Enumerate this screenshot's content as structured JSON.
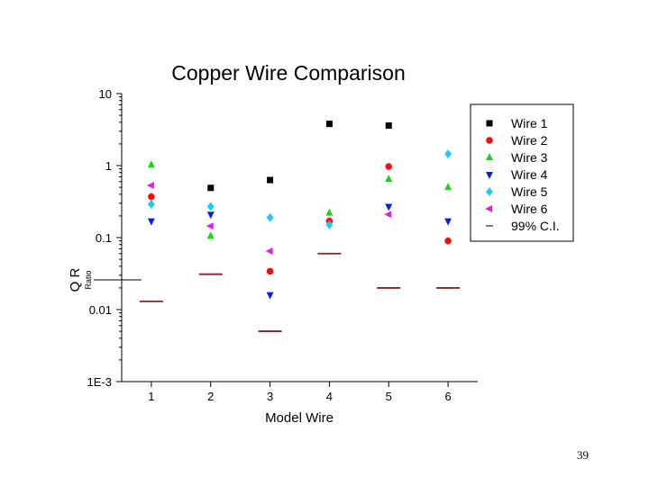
{
  "slide": {
    "page_number": "39"
  },
  "chart_data": {
    "type": "scatter",
    "title": "Copper Wire Comparison",
    "xlabel": "Model Wire",
    "ylabel": "Q R",
    "ylabel_extra": "Ratio",
    "y_scale": "log",
    "ylim": [
      0.001,
      10
    ],
    "xlim": [
      0.5,
      6.5
    ],
    "x_ticks": [
      "1",
      "2",
      "3",
      "4",
      "5",
      "6"
    ],
    "y_ticks": [
      {
        "value": 10,
        "label": "10"
      },
      {
        "value": 1,
        "label": "1"
      },
      {
        "value": 0.1,
        "label": "0.1"
      },
      {
        "value": 0.01,
        "label": "0.01"
      },
      {
        "value": 0.001,
        "label": "1E-3"
      }
    ],
    "grid": false,
    "legend_position": "right",
    "series": [
      {
        "name": "Wire 1",
        "marker": "square",
        "color": "#000000",
        "points": [
          [
            2,
            0.49
          ],
          [
            3,
            0.63
          ],
          [
            4,
            3.8
          ],
          [
            5,
            3.6
          ]
        ]
      },
      {
        "name": "Wire 2",
        "marker": "circle",
        "color": "#ee1111",
        "points": [
          [
            1,
            0.37
          ],
          [
            3,
            0.034
          ],
          [
            4,
            0.17
          ],
          [
            5,
            0.97
          ],
          [
            6,
            0.09
          ]
        ]
      },
      {
        "name": "Wire 3",
        "marker": "triangle-up",
        "color": "#22cc22",
        "points": [
          [
            1,
            1.02
          ],
          [
            2,
            0.105
          ],
          [
            4,
            0.22
          ],
          [
            5,
            0.65
          ],
          [
            6,
            0.5
          ]
        ]
      },
      {
        "name": "Wire 4",
        "marker": "triangle-down",
        "color": "#1122cc",
        "points": [
          [
            1,
            0.17
          ],
          [
            2,
            0.21
          ],
          [
            3,
            0.016
          ],
          [
            5,
            0.27
          ],
          [
            6,
            0.17
          ]
        ]
      },
      {
        "name": "Wire 5",
        "marker": "diamond",
        "color": "#22ccee",
        "points": [
          [
            1,
            0.29
          ],
          [
            2,
            0.27
          ],
          [
            3,
            0.19
          ],
          [
            4,
            0.15
          ],
          [
            6,
            1.45
          ]
        ]
      },
      {
        "name": "Wire 6",
        "marker": "triangle-left",
        "color": "#dd22dd",
        "points": [
          [
            1,
            0.53
          ],
          [
            2,
            0.145
          ],
          [
            3,
            0.065
          ],
          [
            5,
            0.21
          ]
        ]
      },
      {
        "name": "99% C.I.",
        "marker": "dash",
        "color": "#882222",
        "points": [
          [
            1,
            0.013
          ],
          [
            2,
            0.031
          ],
          [
            3,
            0.005
          ],
          [
            4,
            0.06
          ],
          [
            5,
            0.02
          ],
          [
            6,
            0.02
          ]
        ]
      }
    ]
  }
}
